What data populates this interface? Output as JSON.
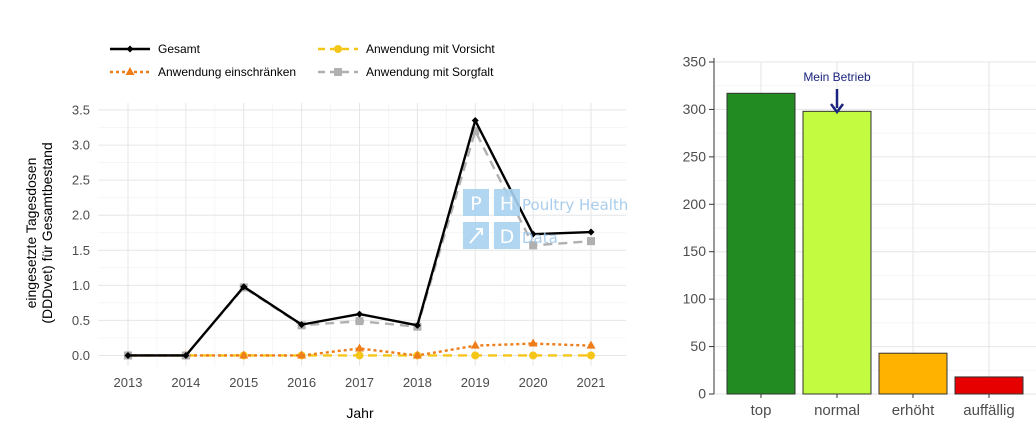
{
  "chart_data": [
    {
      "type": "line",
      "xlabel": "Jahr",
      "ylabel": [
        "eingesetzte Tagesdosen",
        "(DDDvet) für Gesamtbestand"
      ],
      "x": [
        "2013",
        "2014",
        "2015",
        "2016",
        "2017",
        "2018",
        "2019",
        "2020",
        "2021"
      ],
      "ylim": [
        -0.15,
        3.6
      ],
      "yticks": [
        "0.0",
        "0.5",
        "1.0",
        "1.5",
        "2.0",
        "2.5",
        "3.0",
        "3.5"
      ],
      "legend_position": "top",
      "grid": true,
      "series": [
        {
          "name": "Gesamt",
          "color": "#000000",
          "dash": "solid",
          "marker": "diamond",
          "values": [
            0.0,
            0.0,
            0.98,
            0.44,
            0.59,
            0.43,
            3.35,
            1.73,
            1.76
          ]
        },
        {
          "name": "Anwendung mit Vorsicht",
          "color": "#f5c518",
          "dash": "dashed",
          "marker": "circle",
          "values": [
            0.0,
            0.0,
            0.0,
            0.0,
            0.0,
            0.0,
            0.0,
            0.0,
            0.0
          ]
        },
        {
          "name": "Anwendung einschränken",
          "color": "#ee7d1a",
          "dash": "dotted",
          "marker": "triangle",
          "values": [
            0.0,
            0.0,
            0.0,
            0.0,
            0.1,
            0.0,
            0.14,
            0.17,
            0.14
          ]
        },
        {
          "name": "Anwendung mit Sorgfalt",
          "color": "#b0b0b0",
          "dash": "dashed",
          "marker": "square",
          "values": [
            0.0,
            0.0,
            0.97,
            0.43,
            0.49,
            0.41,
            3.2,
            1.57,
            1.63
          ]
        }
      ]
    },
    {
      "type": "bar",
      "categories": [
        "top",
        "normal",
        "erhöht",
        "auffällig"
      ],
      "values": [
        317,
        298,
        43,
        18
      ],
      "colors": [
        "#228b22",
        "#c2fb3f",
        "#ffb300",
        "#e60000"
      ],
      "ylim": [
        0,
        350
      ],
      "yticks": [
        "0",
        "50",
        "100",
        "150",
        "200",
        "250",
        "300",
        "350"
      ],
      "grid": true,
      "annotation": {
        "text": "Mein Betrieb",
        "category": "normal"
      }
    }
  ],
  "watermark": {
    "line1": "Poultry Health",
    "line2": "Data",
    "logo_letters": [
      "P",
      "H",
      "D"
    ]
  }
}
